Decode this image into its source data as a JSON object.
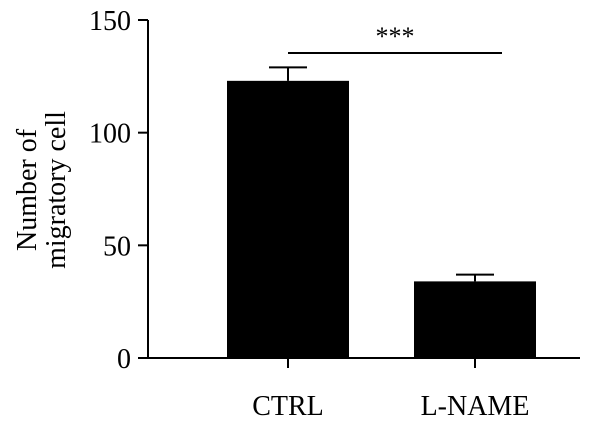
{
  "chart_data": {
    "type": "bar",
    "categories": [
      "CTRL",
      "L-NAME"
    ],
    "values": [
      123,
      34
    ],
    "errors": [
      6,
      3
    ],
    "ylabel_lines": [
      "Number of",
      "migratory cell"
    ],
    "xlabel": "",
    "ylim": [
      0,
      150
    ],
    "yticks": [
      0,
      50,
      100,
      150
    ],
    "bar_color": "#000000",
    "grid": false,
    "significance": {
      "label": "***",
      "from": "CTRL",
      "to": "L-NAME"
    }
  }
}
